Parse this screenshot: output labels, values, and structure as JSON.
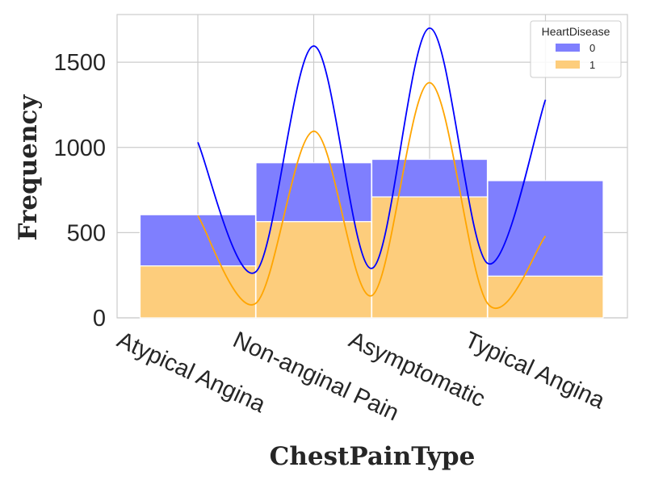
{
  "chart_data": {
    "type": "bar",
    "stacked": true,
    "categories": [
      "Atypical Angina",
      "Non-anginal Pain",
      "Asymptomatic",
      "Typical Angina"
    ],
    "series": [
      {
        "name": "1",
        "color": "#fdcd7c",
        "values": [
          305,
          565,
          710,
          245
        ]
      },
      {
        "name": "0",
        "color": "#7f7ffe",
        "values": [
          300,
          345,
          220,
          560
        ]
      }
    ],
    "kde": [
      {
        "name": "0",
        "color": "#0000ff",
        "points": [
          [
            0,
            1030
          ],
          [
            0.5,
            270
          ],
          [
            1,
            1595
          ],
          [
            1.5,
            290
          ],
          [
            2,
            1700
          ],
          [
            2.5,
            320
          ],
          [
            3,
            1280
          ]
        ]
      },
      {
        "name": "1",
        "color": "#ffa500",
        "points": [
          [
            0,
            600
          ],
          [
            0.5,
            85
          ],
          [
            1,
            1095
          ],
          [
            1.5,
            130
          ],
          [
            2,
            1380
          ],
          [
            2.5,
            85
          ],
          [
            3,
            480
          ]
        ]
      }
    ],
    "xlabel": "ChestPainType",
    "ylabel": "Frequency",
    "yticks": [
      0,
      500,
      1000,
      1500
    ],
    "ylim": [
      0,
      1780
    ],
    "grid": true,
    "legend": {
      "title": "HeartDisease",
      "placement": "top-right",
      "entries": [
        "0",
        "1"
      ]
    }
  }
}
